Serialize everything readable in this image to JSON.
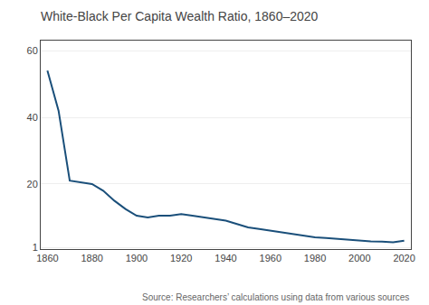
{
  "chart_data": {
    "type": "line",
    "title": "White-Black Per Capita Wealth Ratio, 1860–2020",
    "annotation": "Source: Researchers’ calculations using data from various sources",
    "x": [
      1860,
      1865,
      1870,
      1875,
      1880,
      1885,
      1890,
      1895,
      1900,
      1905,
      1910,
      1915,
      1920,
      1925,
      1930,
      1935,
      1940,
      1945,
      1950,
      1955,
      1960,
      1965,
      1970,
      1975,
      1980,
      1985,
      1990,
      1995,
      2000,
      2005,
      2010,
      2015,
      2020
    ],
    "values": [
      54,
      42,
      21,
      20.5,
      20,
      18,
      15,
      12.5,
      10.5,
      10,
      10.5,
      10.5,
      11,
      10.5,
      10,
      9.5,
      9,
      8,
      7,
      6.5,
      6,
      5.5,
      5,
      4.5,
      4,
      3.8,
      3.5,
      3.2,
      3.0,
      2.8,
      2.7,
      2.5,
      3.0
    ],
    "color": "#1a4f7a",
    "xlim": [
      1857,
      2023
    ],
    "xticks": [
      1860,
      1880,
      1900,
      1920,
      1940,
      1960,
      1980,
      2000,
      2020
    ],
    "ylim": [
      0.5,
      63
    ],
    "yticks": [
      1,
      20,
      40,
      60
    ],
    "grid": true
  }
}
